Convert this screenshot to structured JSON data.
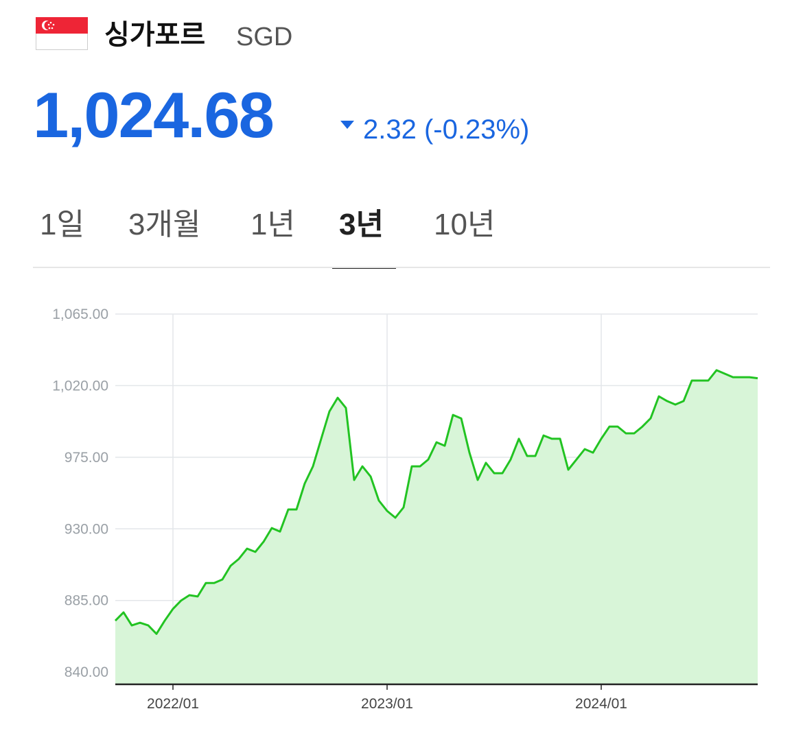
{
  "header": {
    "title": "싱가포르",
    "currency": "SGD",
    "price": "1,024.68",
    "change": "2.32 (-0.23%)"
  },
  "tabs": {
    "items": [
      "1일",
      "3개월",
      "1년",
      "3년",
      "10년"
    ],
    "active": 3
  },
  "chart_data": {
    "type": "line",
    "color": "#22c322",
    "area_color": "#d8f5d8",
    "categories": [
      null,
      null,
      null,
      null,
      null,
      null,
      null,
      "2022/01",
      null,
      null,
      null,
      null,
      null,
      null,
      null,
      null,
      null,
      null,
      null,
      null,
      null,
      null,
      null,
      null,
      null,
      null,
      null,
      null,
      null,
      null,
      null,
      null,
      null,
      "2023/01",
      null,
      null,
      null,
      null,
      null,
      null,
      null,
      null,
      null,
      null,
      null,
      null,
      null,
      null,
      null,
      null,
      null,
      null,
      null,
      null,
      null,
      null,
      null,
      null,
      null,
      "2024/01",
      null,
      null,
      null,
      null,
      null,
      null,
      null,
      null,
      null,
      null,
      null,
      null,
      null,
      null,
      null,
      null,
      null,
      null,
      null
    ],
    "values": [
      872.3,
      877.5,
      869.3,
      871,
      869.3,
      864,
      872.3,
      879.7,
      885,
      888.3,
      887.5,
      896,
      896,
      898.2,
      906.8,
      911.1,
      917.6,
      915.5,
      921.9,
      930.5,
      928.3,
      942.2,
      942.2,
      958.5,
      969.3,
      986.6,
      1003.8,
      1012.4,
      1006,
      960.7,
      969.3,
      962.9,
      947.8,
      941.3,
      937,
      943.5,
      969.3,
      969.3,
      973.6,
      984.4,
      982.2,
      1001.6,
      999.4,
      977.9,
      960.7,
      971.5,
      965,
      965,
      973.6,
      986.6,
      975.8,
      975.8,
      988.7,
      986.6,
      986.6,
      967.2,
      973.6,
      980.1,
      977.9,
      986.6,
      994.3,
      994.3,
      990,
      990,
      994.3,
      999.5,
      1013.3,
      1010.3,
      1008.1,
      1010.3,
      1023.2,
      1023.2,
      1023.2,
      1029.7,
      1027.5,
      1025.3,
      1025.3,
      1025.3,
      1024.68
    ],
    "ylim": [
      832.3,
      1065
    ],
    "yticks": [
      {
        "value": 840,
        "label": "840.00"
      },
      {
        "value": 885,
        "label": "885.00"
      },
      {
        "value": 930,
        "label": "930.00"
      },
      {
        "value": 975,
        "label": "975.00"
      },
      {
        "value": 1020,
        "label": "1,020.00"
      },
      {
        "value": 1065,
        "label": "1,065.00"
      }
    ],
    "grid": true
  }
}
